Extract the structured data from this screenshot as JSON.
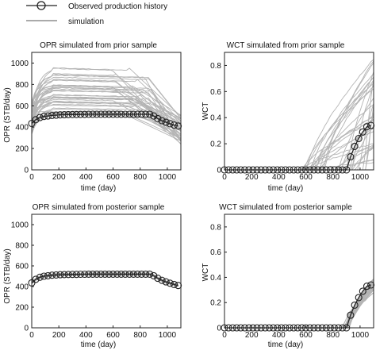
{
  "legend": {
    "entries": [
      {
        "label": "Observed production history",
        "style": "line-with-circles",
        "color": "#000000"
      },
      {
        "label": "simulation",
        "style": "line",
        "color": "#555555"
      }
    ]
  },
  "colors": {
    "simulation": "#b4b4b4",
    "observed": "#222222",
    "marker_edge": "#222222"
  },
  "chart_data": [
    {
      "id": "opr-prior",
      "type": "line",
      "title": "OPR simulated from prior sample",
      "xlabel": "time (day)",
      "ylabel": "OPR (STB/day)",
      "xlim": [
        0,
        1100
      ],
      "ylim": [
        0,
        1100
      ],
      "xticks": [
        0,
        200,
        400,
        600,
        800,
        1000
      ],
      "xtick_labels": [
        "0",
        "200",
        "400",
        "600",
        "800",
        "1000"
      ],
      "yticks": [
        0,
        200,
        400,
        600,
        800,
        1000
      ],
      "observed": {
        "x": [
          0,
          30,
          60,
          90,
          120,
          150,
          180,
          210,
          240,
          270,
          300,
          330,
          360,
          390,
          420,
          450,
          480,
          510,
          540,
          570,
          600,
          630,
          660,
          690,
          720,
          750,
          780,
          810,
          840,
          870,
          900,
          930,
          960,
          990,
          1020,
          1050,
          1080
        ],
        "y": [
          435,
          470,
          490,
          500,
          505,
          510,
          512,
          515,
          516,
          517,
          518,
          518,
          519,
          519,
          520,
          520,
          520,
          520,
          520,
          520,
          520,
          520,
          520,
          520,
          520,
          520,
          520,
          520,
          520,
          520,
          505,
          480,
          460,
          445,
          432,
          420,
          410
        ]
      },
      "ensemble": {
        "count": 40,
        "description": "gray simulation curves",
        "start_range": [
          330,
          650
        ],
        "plateau_range": [
          470,
          960
        ],
        "end_range": [
          240,
          540
        ],
        "decline_start_range": [
          580,
          880
        ]
      },
      "grid": false
    },
    {
      "id": "wct-prior",
      "type": "line",
      "title": "WCT simulated from prior sample",
      "xlabel": "time (day)",
      "ylabel": "WCT",
      "xlim": [
        0,
        1100
      ],
      "ylim": [
        0,
        0.9
      ],
      "xticks": [
        0,
        200,
        400,
        600,
        800,
        1000
      ],
      "xtick_labels": [
        "0",
        "200",
        "400",
        "600",
        "800",
        "1000"
      ],
      "yticks": [
        0,
        0.2,
        0.4,
        0.6,
        0.8
      ],
      "ytick_labels": [
        "0",
        "0.2",
        "0.4",
        "0.6",
        "0.8"
      ],
      "observed": {
        "x": [
          0,
          30,
          60,
          90,
          120,
          150,
          180,
          210,
          240,
          270,
          300,
          330,
          360,
          390,
          420,
          450,
          480,
          510,
          540,
          570,
          600,
          630,
          660,
          690,
          720,
          750,
          780,
          810,
          840,
          870,
          900,
          930,
          960,
          990,
          1020,
          1050,
          1080
        ],
        "y": [
          0,
          0,
          0,
          0,
          0,
          0,
          0,
          0,
          0,
          0,
          0,
          0,
          0,
          0,
          0,
          0,
          0,
          0,
          0,
          0,
          0,
          0,
          0,
          0,
          0,
          0,
          0,
          0,
          0,
          0,
          0,
          0.1,
          0.18,
          0.24,
          0.29,
          0.33,
          0.34
        ]
      },
      "ensemble": {
        "count": 36,
        "description": "gray simulation curves",
        "breakthrough_range": [
          560,
          1060
        ],
        "end_range": [
          0.05,
          0.88
        ]
      },
      "grid": false
    },
    {
      "id": "opr-posterior",
      "type": "line",
      "title": "OPR simulated from posterior sample",
      "xlabel": "time (day)",
      "ylabel": "OPR (STB/day)",
      "xlim": [
        0,
        1100
      ],
      "ylim": [
        0,
        1100
      ],
      "xticks": [
        0,
        200,
        400,
        600,
        800,
        1000
      ],
      "xtick_labels": [
        "0",
        "200",
        "400",
        "600",
        "800",
        "1000"
      ],
      "yticks": [
        0,
        200,
        400,
        600,
        800,
        1000
      ],
      "observed": {
        "x": [
          0,
          30,
          60,
          90,
          120,
          150,
          180,
          210,
          240,
          270,
          300,
          330,
          360,
          390,
          420,
          450,
          480,
          510,
          540,
          570,
          600,
          630,
          660,
          690,
          720,
          750,
          780,
          810,
          840,
          870,
          900,
          930,
          960,
          990,
          1020,
          1050,
          1080
        ],
        "y": [
          435,
          470,
          490,
          500,
          505,
          510,
          512,
          515,
          516,
          517,
          518,
          518,
          519,
          519,
          520,
          520,
          520,
          520,
          520,
          520,
          520,
          520,
          520,
          520,
          520,
          520,
          520,
          520,
          520,
          520,
          505,
          480,
          460,
          445,
          432,
          420,
          410
        ]
      },
      "ensemble": {
        "count": 30,
        "description": "gray simulation curves tightly around observed",
        "spread": 12
      },
      "grid": false
    },
    {
      "id": "wct-posterior",
      "type": "line",
      "title": "WCT simulated from posterior sample",
      "xlabel": "time (day)",
      "ylabel": "WCT",
      "xlim": [
        0,
        1100
      ],
      "ylim": [
        0,
        0.9
      ],
      "xticks": [
        0,
        200,
        400,
        600,
        800,
        1000
      ],
      "xtick_labels": [
        "0",
        "200",
        "400",
        "600",
        "800",
        "1000"
      ],
      "yticks": [
        0,
        0.2,
        0.4,
        0.6,
        0.8
      ],
      "ytick_labels": [
        "0",
        "0.2",
        "0.4",
        "0.6",
        "0.8"
      ],
      "observed": {
        "x": [
          0,
          30,
          60,
          90,
          120,
          150,
          180,
          210,
          240,
          270,
          300,
          330,
          360,
          390,
          420,
          450,
          480,
          510,
          540,
          570,
          600,
          630,
          660,
          690,
          720,
          750,
          780,
          810,
          840,
          870,
          900,
          930,
          960,
          990,
          1020,
          1050,
          1080
        ],
        "y": [
          0,
          0,
          0,
          0,
          0,
          0,
          0,
          0,
          0,
          0,
          0,
          0,
          0,
          0,
          0,
          0,
          0,
          0,
          0,
          0,
          0,
          0,
          0,
          0,
          0,
          0,
          0,
          0,
          0,
          0,
          0,
          0.1,
          0.18,
          0.24,
          0.29,
          0.33,
          0.34
        ]
      },
      "ensemble": {
        "count": 30,
        "description": "gray simulation curves tightly around observed",
        "breakthrough_range": [
          870,
          930
        ],
        "end_range": [
          0.28,
          0.4
        ]
      },
      "grid": false
    }
  ]
}
